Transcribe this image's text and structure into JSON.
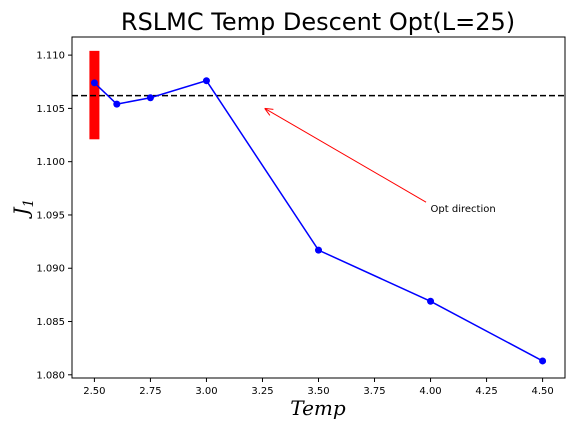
{
  "chart_data": {
    "type": "line",
    "title": "RSLMC Temp Descent Opt(L=25)",
    "xlabel": "Temp",
    "ylabel": "J",
    "ylabel_subscript": "1",
    "xlim": [
      2.4,
      4.6
    ],
    "ylim": [
      1.0797,
      1.1117
    ],
    "x_ticks": [
      2.5,
      2.75,
      3.0,
      3.25,
      3.5,
      3.75,
      4.0,
      4.25,
      4.5
    ],
    "x_tick_labels": [
      "2.50",
      "2.75",
      "3.00",
      "3.25",
      "3.50",
      "3.75",
      "4.00",
      "4.25",
      "4.50"
    ],
    "y_ticks": [
      1.08,
      1.085,
      1.09,
      1.095,
      1.1,
      1.105,
      1.11
    ],
    "y_tick_labels": [
      "1.080",
      "1.085",
      "1.090",
      "1.095",
      "1.100",
      "1.105",
      "1.110"
    ],
    "grid": false,
    "series": [
      {
        "color": "#0000ff",
        "x": [
          2.5,
          2.6,
          2.75,
          3.0,
          3.5,
          4.0,
          4.5
        ],
        "y": [
          1.1074,
          1.1054,
          1.106,
          1.1076,
          1.0917,
          1.0869,
          1.0813
        ]
      }
    ],
    "reference_line": {
      "y": 1.1062,
      "color": "#000000",
      "style": "dashed"
    },
    "error_bar": {
      "x": 2.5,
      "y_low": 1.1021,
      "y_high": 1.1104,
      "color": "#ff0000"
    },
    "annotation": {
      "text": "Opt direction",
      "text_x": 4.0,
      "text_y": 1.0953,
      "arrow_from": [
        3.98,
        1.0962
      ],
      "arrow_to": [
        3.26,
        1.105
      ],
      "color": "#ff0000"
    }
  }
}
